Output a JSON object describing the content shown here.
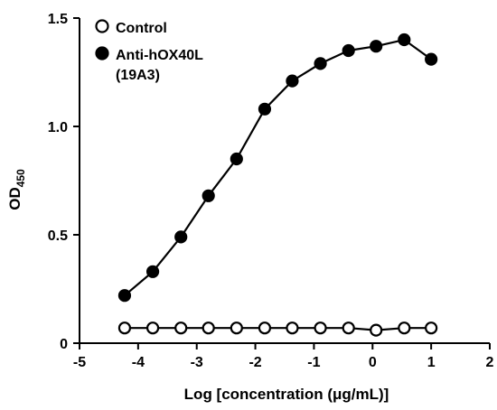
{
  "chart_data": {
    "type": "line",
    "title": "",
    "xlabel": "Log [concentration (μg/mL)]",
    "ylabel": "OD",
    "ylabel_subscript": "450",
    "xlim": [
      -5,
      2
    ],
    "ylim": [
      0,
      1.5
    ],
    "x_ticks": [
      -5,
      -4,
      -3,
      -2,
      -1,
      0,
      1,
      2
    ],
    "y_ticks": [
      0,
      0.5,
      1.0,
      1.5
    ],
    "x_tick_labels": [
      "-5",
      "-4",
      "-3",
      "-2",
      "-1",
      "0",
      "1",
      "2"
    ],
    "y_tick_labels": [
      "0",
      "0.5",
      "1.0",
      "1.5"
    ],
    "grid": false,
    "legend_position": "top-left",
    "series": [
      {
        "name": "Control",
        "marker": "open-circle",
        "color": "#000000",
        "x": [
          -4.23,
          -3.75,
          -3.27,
          -2.8,
          -2.32,
          -1.84,
          -1.37,
          -0.89,
          -0.41,
          0.06,
          0.54,
          1.0
        ],
        "y": [
          0.07,
          0.07,
          0.07,
          0.07,
          0.07,
          0.07,
          0.07,
          0.07,
          0.07,
          0.06,
          0.07,
          0.07
        ]
      },
      {
        "name": "Anti-hOX40L (19A3)",
        "name_lines": [
          "Anti-hOX40L",
          "(19A3)"
        ],
        "marker": "filled-circle",
        "color": "#000000",
        "x": [
          -4.23,
          -3.75,
          -3.27,
          -2.8,
          -2.32,
          -1.84,
          -1.37,
          -0.89,
          -0.41,
          0.06,
          0.54,
          1.0
        ],
        "y": [
          0.22,
          0.33,
          0.49,
          0.68,
          0.85,
          1.08,
          1.21,
          1.29,
          1.35,
          1.37,
          1.4,
          1.31
        ]
      }
    ]
  }
}
